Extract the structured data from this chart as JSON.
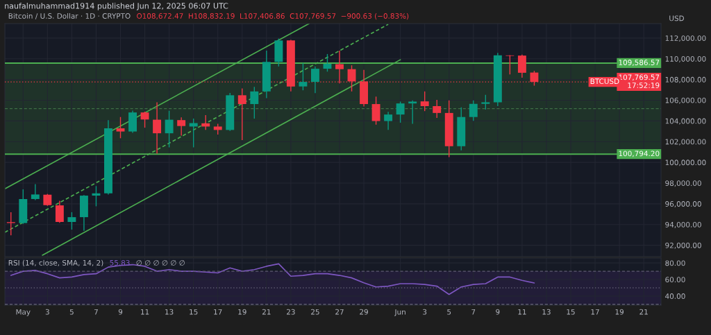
{
  "chart_data": [
    {
      "type": "candlestick",
      "subtitle": "naufalmuhammad1914 published Jun 12, 2025 06:07 UTC",
      "title": "Bitcoin / U.S. Dollar · 1D · CRYPTO",
      "ylabel": "USD",
      "annotations": [
        "O108,672.47  H108,832.19  L107,406.86  C107,769.57  −900.63 (−0.83%)",
        {
          "text": "BTCUSD",
          "x": "2025-06-19",
          "y": 107769.57
        }
      ],
      "x": [
        "2025-04-30",
        "2025-05-01",
        "2025-05-02",
        "2025-05-03",
        "2025-05-04",
        "2025-05-05",
        "2025-05-06",
        "2025-05-07",
        "2025-05-08",
        "2025-05-09",
        "2025-05-10",
        "2025-05-11",
        "2025-05-12",
        "2025-05-13",
        "2025-05-14",
        "2025-05-15",
        "2025-05-16",
        "2025-05-17",
        "2025-05-18",
        "2025-05-19",
        "2025-05-20",
        "2025-05-21",
        "2025-05-22",
        "2025-05-23",
        "2025-05-24",
        "2025-05-25",
        "2025-05-26",
        "2025-05-27",
        "2025-05-28",
        "2025-05-29",
        "2025-05-30",
        "2025-05-31",
        "2025-06-01",
        "2025-06-02",
        "2025-06-03",
        "2025-06-04",
        "2025-06-05",
        "2025-06-06",
        "2025-06-07",
        "2025-06-08",
        "2025-06-09",
        "2025-06-10",
        "2025-06-11",
        "2025-06-12"
      ],
      "ohlc": [
        [
          94230,
          95190,
          92960,
          94140
        ],
        [
          94140,
          97400,
          94060,
          96460
        ],
        [
          96460,
          97890,
          96350,
          96900
        ],
        [
          96880,
          96950,
          95810,
          95870
        ],
        [
          95850,
          96290,
          94170,
          94250
        ],
        [
          94250,
          95190,
          93510,
          94710
        ],
        [
          94710,
          96840,
          93400,
          96790
        ],
        [
          96790,
          97710,
          95760,
          97010
        ],
        [
          97010,
          104080,
          96900,
          103290
        ],
        [
          103290,
          104380,
          102330,
          102980
        ],
        [
          102980,
          104990,
          102850,
          104820
        ],
        [
          104820,
          104900,
          103350,
          104140
        ],
        [
          104120,
          105800,
          100840,
          102810
        ],
        [
          102810,
          104990,
          101450,
          104120
        ],
        [
          104080,
          104340,
          102590,
          103510
        ],
        [
          103460,
          104230,
          101450,
          103790
        ],
        [
          103770,
          104560,
          103130,
          103460
        ],
        [
          103460,
          103730,
          102680,
          103130
        ],
        [
          103130,
          106700,
          103030,
          106480
        ],
        [
          106480,
          107140,
          102150,
          105630
        ],
        [
          105630,
          107290,
          104230,
          106850
        ],
        [
          106850,
          110790,
          106200,
          109700
        ],
        [
          109700,
          111950,
          109260,
          111770
        ],
        [
          111770,
          111820,
          106850,
          107330
        ],
        [
          107330,
          109590,
          106960,
          107770
        ],
        [
          107770,
          109260,
          106680,
          109040
        ],
        [
          109040,
          110460,
          108760,
          109520
        ],
        [
          109480,
          110790,
          107620,
          109000
        ],
        [
          109000,
          109370,
          106850,
          107820
        ],
        [
          107820,
          108930,
          105390,
          105630
        ],
        [
          105630,
          106350,
          103640,
          103990
        ],
        [
          103990,
          104880,
          103130,
          104620
        ],
        [
          104620,
          105870,
          103830,
          105690
        ],
        [
          105690,
          105980,
          103730,
          105870
        ],
        [
          105890,
          106850,
          104950,
          105430
        ],
        [
          105430,
          106040,
          104290,
          104770
        ],
        [
          104770,
          105980,
          100510,
          101560
        ],
        [
          101560,
          105320,
          101170,
          104380
        ],
        [
          104380,
          105980,
          104010,
          105650
        ],
        [
          105650,
          106520,
          105100,
          105800
        ],
        [
          105800,
          110570,
          105430,
          110330
        ],
        [
          110330,
          110350,
          108490,
          110280
        ],
        [
          110310,
          110400,
          108170,
          108650
        ],
        [
          108672.47,
          108832.19,
          107406.86,
          107769.57
        ]
      ],
      "colors": [
        "#f23645",
        "#089981",
        "#089981",
        "#f23645",
        "#f23645",
        "#089981",
        "#089981",
        "#089981",
        "#089981",
        "#f23645",
        "#089981",
        "#f23645",
        "#f23645",
        "#089981",
        "#f23645",
        "#089981",
        "#f23645",
        "#f23645",
        "#089981",
        "#f23645",
        "#089981",
        "#089981",
        "#089981",
        "#f23645",
        "#089981",
        "#089981",
        "#089981",
        "#f23645",
        "#f23645",
        "#f23645",
        "#f23645",
        "#089981",
        "#089981",
        "#089981",
        "#f23645",
        "#f23645",
        "#f23645",
        "#089981",
        "#089981",
        "#089981",
        "#089981",
        "#f23645",
        "#f23645",
        "#f23645"
      ],
      "series": [
        {
          "type": "line",
          "color": "#4caf50",
          "x": [
            "2025-04-29T12:00",
            "2025-05-24T12:00"
          ],
          "values": [
            97450,
            113400
          ]
        },
        {
          "type": "line",
          "color": "#4caf50",
          "line_style": "dashed",
          "x": [
            "2025-04-29T12:00",
            "2025-05-31T00:00"
          ],
          "values": [
            93250,
            113330
          ]
        },
        {
          "type": "line",
          "color": "#4caf50",
          "x": [
            "2025-05-02T14:00",
            "2025-06-01T00:00"
          ],
          "values": [
            91040,
            109910
          ]
        }
      ],
      "xlim": [
        "2025-04-29T12:00",
        "2025-06-22T10:00"
      ],
      "xticks": [
        {
          "value": "2025-05-01",
          "label": null
        },
        {
          "value": "2025-05-03",
          "label": null
        },
        {
          "value": "2025-05-05",
          "label": null
        },
        {
          "value": "2025-05-07",
          "label": null
        },
        {
          "value": "2025-05-09",
          "label": null
        },
        {
          "value": "2025-05-11",
          "label": null
        },
        {
          "value": "2025-05-13",
          "label": null
        },
        {
          "value": "2025-05-15",
          "label": null
        },
        {
          "value": "2025-05-17",
          "label": null
        },
        {
          "value": "2025-05-19",
          "label": null
        },
        {
          "value": "2025-05-21",
          "label": null
        },
        {
          "value": "2025-05-23",
          "label": null
        },
        {
          "value": "2025-05-25",
          "label": null
        },
        {
          "value": "2025-05-27",
          "label": null
        },
        {
          "value": "2025-05-29",
          "label": null
        },
        {
          "value": "2025-06-01",
          "label": null
        },
        {
          "value": "2025-06-03",
          "label": null
        },
        {
          "value": "2025-06-05",
          "label": null
        },
        {
          "value": "2025-06-07",
          "label": null
        },
        {
          "value": "2025-06-09",
          "label": null
        },
        {
          "value": "2025-06-11",
          "label": null
        },
        {
          "value": "2025-06-13",
          "label": null
        },
        {
          "value": "2025-06-15",
          "label": null
        },
        {
          "value": "2025-06-17",
          "label": null
        },
        {
          "value": "2025-06-19",
          "label": null
        },
        {
          "value": "2025-06-21",
          "label": null
        }
      ],
      "ylim": [
        90900,
        113400
      ],
      "yticks": [
        {
          "value": 92000,
          "label": "92,000.00"
        },
        {
          "value": 94000,
          "label": "94,000.00"
        },
        {
          "value": 96000,
          "label": "96,000.00"
        },
        {
          "value": 98000,
          "label": "98,000.00"
        },
        {
          "value": 100000,
          "label": "100,000.00"
        },
        {
          "value": 102000,
          "label": "102,000.00"
        },
        {
          "value": 104000,
          "label": "104,000.00"
        },
        {
          "value": 106000,
          "label": "106,000.00"
        },
        {
          "value": 108000,
          "label": "108,000.00"
        },
        {
          "value": 110000,
          "label": "110,000.00"
        },
        {
          "value": 112000,
          "label": "112,000.00"
        }
      ],
      "tick_labels": "y",
      "grid": true,
      "bands": [
        {
          "axis": "y",
          "from": 100794.2,
          "to": 109586.57,
          "color": "#1f3329"
        }
      ],
      "ref_lines": [
        {
          "axis": "y",
          "value": 109586.57,
          "label": "109,586.57",
          "color": "#4caf50"
        },
        {
          "axis": "y",
          "value": 100794.2,
          "label": "100,794.20",
          "color": "#4caf50"
        },
        {
          "axis": "y",
          "value": 105190.39,
          "color": "#3d6e45",
          "line_style": "dashed"
        },
        {
          "axis": "y",
          "value": 107769.57,
          "label": "107,769.57\n17:52:19",
          "color": "#f23645",
          "line_style": "dotted"
        }
      ]
    },
    {
      "type": "line",
      "title": "RSI (14, close, SMA, 14, 2)",
      "annotations": [
        "55.83",
        "∅ ∅ ∅ ∅ ∅ ∅"
      ],
      "x": [
        "2025-04-30",
        "2025-05-01",
        "2025-05-02",
        "2025-05-03",
        "2025-05-04",
        "2025-05-05",
        "2025-05-06",
        "2025-05-07",
        "2025-05-08",
        "2025-05-09",
        "2025-05-10",
        "2025-05-11",
        "2025-05-12",
        "2025-05-13",
        "2025-05-14",
        "2025-05-15",
        "2025-05-16",
        "2025-05-17",
        "2025-05-18",
        "2025-05-19",
        "2025-05-20",
        "2025-05-21",
        "2025-05-22",
        "2025-05-23",
        "2025-05-24",
        "2025-05-25",
        "2025-05-26",
        "2025-05-27",
        "2025-05-28",
        "2025-05-29",
        "2025-05-30",
        "2025-05-31",
        "2025-06-01",
        "2025-06-02",
        "2025-06-03",
        "2025-06-04",
        "2025-06-05",
        "2025-06-06",
        "2025-06-07",
        "2025-06-08",
        "2025-06-09",
        "2025-06-10",
        "2025-06-11",
        "2025-06-12"
      ],
      "series": [
        {
          "color": "#7e57c2",
          "values": [
            65,
            70,
            71,
            67,
            62,
            63,
            66,
            67,
            75,
            77,
            78,
            76,
            70,
            72,
            70,
            70,
            69,
            68,
            74,
            70,
            72,
            76,
            79,
            64,
            65,
            67,
            67,
            65,
            62,
            56,
            51,
            52,
            55,
            55,
            54,
            52,
            42,
            51,
            54,
            55,
            63,
            63,
            59,
            55.83
          ]
        }
      ],
      "xlim": [
        "2025-04-29T12:00",
        "2025-06-22T10:00"
      ],
      "xticks": [
        {
          "value": "2025-05-01",
          "label": "May"
        },
        {
          "value": "2025-05-03",
          "label": "3"
        },
        {
          "value": "2025-05-05",
          "label": "5"
        },
        {
          "value": "2025-05-07",
          "label": "7"
        },
        {
          "value": "2025-05-09",
          "label": "9"
        },
        {
          "value": "2025-05-11",
          "label": "11"
        },
        {
          "value": "2025-05-13",
          "label": "13"
        },
        {
          "value": "2025-05-15",
          "label": "15"
        },
        {
          "value": "2025-05-17",
          "label": "17"
        },
        {
          "value": "2025-05-19",
          "label": "19"
        },
        {
          "value": "2025-05-21",
          "label": "21"
        },
        {
          "value": "2025-05-23",
          "label": "23"
        },
        {
          "value": "2025-05-25",
          "label": "25"
        },
        {
          "value": "2025-05-27",
          "label": "27"
        },
        {
          "value": "2025-05-29",
          "label": "29"
        },
        {
          "value": "2025-06-01",
          "label": "Jun"
        },
        {
          "value": "2025-06-03",
          "label": "3"
        },
        {
          "value": "2025-06-05",
          "label": "5"
        },
        {
          "value": "2025-06-07",
          "label": "7"
        },
        {
          "value": "2025-06-09",
          "label": "9"
        },
        {
          "value": "2025-06-11",
          "label": "11"
        },
        {
          "value": "2025-06-13",
          "label": "13"
        },
        {
          "value": "2025-06-15",
          "label": "15"
        },
        {
          "value": "2025-06-17",
          "label": "17"
        },
        {
          "value": "2025-06-19",
          "label": "19"
        },
        {
          "value": "2025-06-21",
          "label": "21"
        }
      ],
      "ylim": [
        29,
        86
      ],
      "yticks": [
        {
          "value": 40,
          "label": "40.00"
        },
        {
          "value": 60,
          "label": "60.00"
        },
        {
          "value": 80,
          "label": "80.00"
        }
      ],
      "grid": true,
      "bands": [
        {
          "axis": "y",
          "from": 30,
          "to": 70,
          "color": "#221d38"
        }
      ],
      "ref_lines": [
        {
          "axis": "y",
          "value": 70,
          "color": "#5d5a70",
          "line_style": "dashed"
        },
        {
          "axis": "y",
          "value": 50,
          "color": "#5d5a70",
          "line_style": "dotted"
        },
        {
          "axis": "y",
          "value": 30,
          "color": "#5d5a70",
          "line_style": "dashed"
        }
      ]
    }
  ]
}
